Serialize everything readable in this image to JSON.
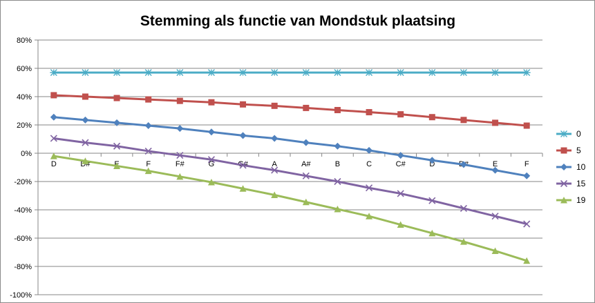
{
  "chart_data": {
    "type": "line",
    "title": "Stemming als functie van Mondstuk plaatsing",
    "xlabel": "",
    "ylabel": "",
    "categories": [
      "D",
      "D#",
      "E",
      "F",
      "F#",
      "G",
      "G#",
      "A",
      "A#",
      "B",
      "C",
      "C#",
      "D",
      "D#",
      "E",
      "F"
    ],
    "y_ticks": [
      "80%",
      "60%",
      "40%",
      "20%",
      "0%",
      "-20%",
      "-40%",
      "-60%",
      "-80%",
      "-100%"
    ],
    "ylim": [
      -1.0,
      0.8
    ],
    "grid": "horizontal",
    "legend_position": "right",
    "series": [
      {
        "name": "0",
        "color": "#4BACC6",
        "marker": "asterisk",
        "values": [
          0.57,
          0.57,
          0.57,
          0.57,
          0.57,
          0.57,
          0.57,
          0.57,
          0.57,
          0.57,
          0.57,
          0.57,
          0.57,
          0.57,
          0.57,
          0.57
        ]
      },
      {
        "name": "5",
        "color": "#C0504D",
        "marker": "square",
        "values": [
          0.41,
          0.4,
          0.39,
          0.38,
          0.37,
          0.36,
          0.345,
          0.335,
          0.32,
          0.305,
          0.29,
          0.275,
          0.255,
          0.235,
          0.215,
          0.195
        ]
      },
      {
        "name": "10",
        "color": "#4F81BD",
        "marker": "diamond",
        "values": [
          0.255,
          0.235,
          0.215,
          0.195,
          0.175,
          0.15,
          0.125,
          0.105,
          0.075,
          0.05,
          0.02,
          -0.015,
          -0.05,
          -0.08,
          -0.12,
          -0.16
        ]
      },
      {
        "name": "15",
        "color": "#8064A2",
        "marker": "x",
        "values": [
          0.105,
          0.075,
          0.05,
          0.015,
          -0.015,
          -0.045,
          -0.085,
          -0.12,
          -0.16,
          -0.2,
          -0.245,
          -0.285,
          -0.335,
          -0.39,
          -0.445,
          -0.5
        ]
      },
      {
        "name": "19",
        "color": "#9BBB59",
        "marker": "triangle",
        "values": [
          -0.02,
          -0.055,
          -0.09,
          -0.125,
          -0.165,
          -0.205,
          -0.25,
          -0.295,
          -0.345,
          -0.395,
          -0.445,
          -0.505,
          -0.565,
          -0.625,
          -0.69,
          -0.76
        ]
      }
    ]
  }
}
